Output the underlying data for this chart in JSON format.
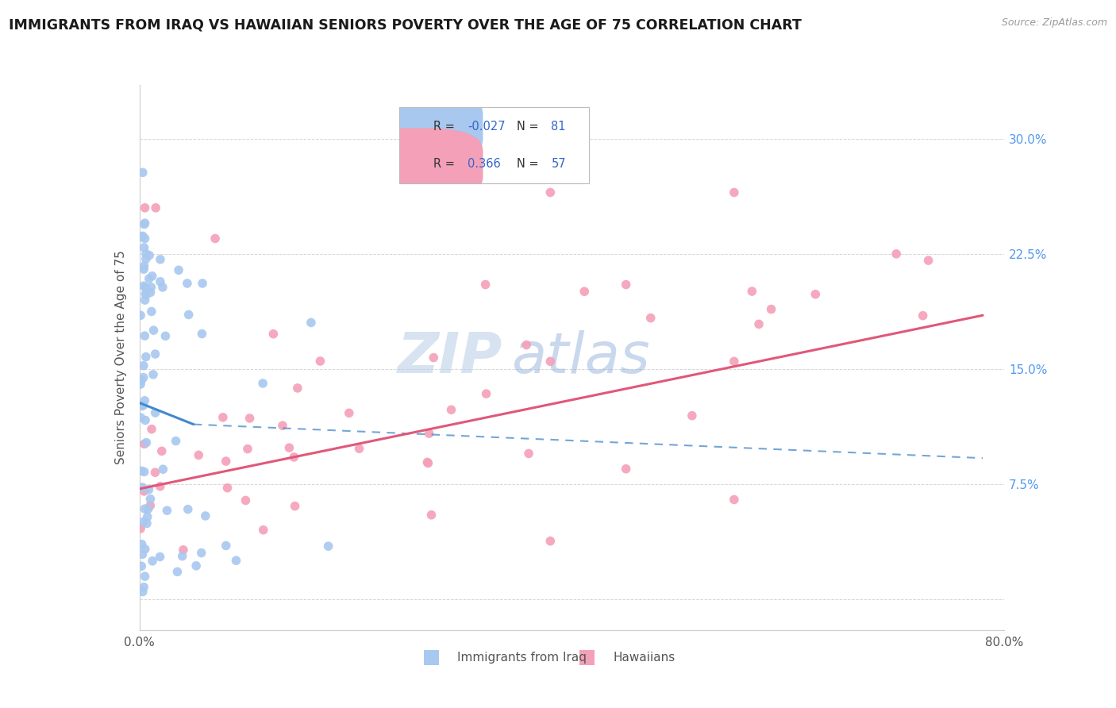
{
  "title": "IMMIGRANTS FROM IRAQ VS HAWAIIAN SENIORS POVERTY OVER THE AGE OF 75 CORRELATION CHART",
  "source": "Source: ZipAtlas.com",
  "ylabel": "Seniors Poverty Over the Age of 75",
  "yticks": [
    0.0,
    0.075,
    0.15,
    0.225,
    0.3
  ],
  "ytick_labels": [
    "",
    "7.5%",
    "15.0%",
    "22.5%",
    "30.0%"
  ],
  "xlim": [
    0.0,
    0.8
  ],
  "ylim": [
    -0.02,
    0.335
  ],
  "series1_name": "Immigrants from Iraq",
  "series1_color": "#a8c8f0",
  "series1_edge_color": "#7aaad0",
  "series1_line_color": "#4488cc",
  "series2_name": "Hawaiians",
  "series2_color": "#f4a0b8",
  "series2_edge_color": "#d07090",
  "series2_line_color": "#e05878",
  "watermark_zip": "ZIP",
  "watermark_atlas": "atlas",
  "background_color": "#ffffff",
  "grid_color": "#cccccc",
  "legend_R1": "-0.027",
  "legend_N1": "81",
  "legend_R2": "0.366",
  "legend_N2": "57",
  "blue_line_x0": 0.0,
  "blue_line_y0": 0.128,
  "blue_line_x1": 0.05,
  "blue_line_y1": 0.114,
  "blue_line_x2": 0.78,
  "blue_line_y2": 0.092,
  "pink_line_x0": 0.0,
  "pink_line_y0": 0.072,
  "pink_line_x1": 0.78,
  "pink_line_y1": 0.185
}
